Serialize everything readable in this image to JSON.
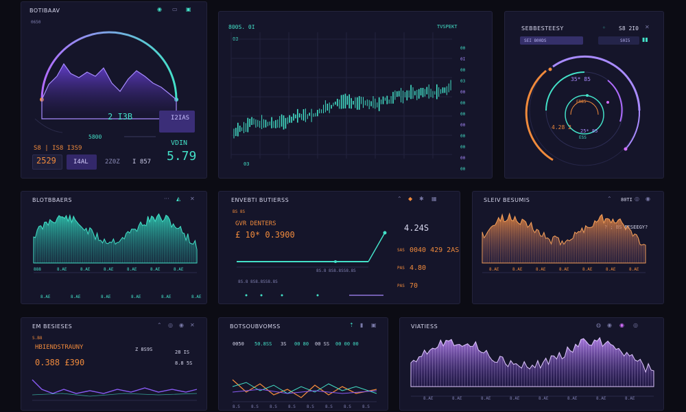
{
  "colors": {
    "bg": "#0c0c14",
    "panel": "#15152a",
    "teal": "#43e1c8",
    "violet": "#8a5cf6",
    "orange": "#f08a3c",
    "pink": "#d46fff"
  },
  "p1": {
    "title": "BOTIBAAV",
    "sub": "0650",
    "center_value": "2 I3B",
    "mid_value": "5800",
    "badge": "I2IAS",
    "left_value": "S8 | IS8 I3S9",
    "tile1": "2529",
    "tile2": "I4AL",
    "tile3": "2Z0Z",
    "tile4": "I 857",
    "big_label": "VDIN",
    "big_value": "5.79"
  },
  "p2": {
    "title": "800S. 0I",
    "top_right": "TVSPEKT",
    "sub": "03",
    "bottom": "03",
    "ticks_right": [
      "00",
      "0I",
      "00",
      "03",
      "00",
      "00",
      "00",
      "00",
      "00",
      "00",
      "00",
      "00"
    ]
  },
  "p3": {
    "title": "SEBBESTEESY",
    "tab_left": "SEI 800DS",
    "tab_right": "S0I5",
    "top_value": "S8 2I0",
    "ring_top": "35* 85",
    "ring_label": "ER85",
    "ring_left": "4.28 2",
    "ring_mid": "25* 85",
    "ring_bottom": "ESS"
  },
  "p4": {
    "title": "BLOTBBAERS",
    "ticks": [
      "888",
      "8.AE",
      "8.AE",
      "8.AE",
      "8.AE",
      "8.AE",
      "8.AE"
    ],
    "foot": [
      "8.AE",
      "8.AE",
      "8.AE",
      "8.AE",
      "8.AE",
      "8.AE"
    ]
  },
  "p5": {
    "title": "ENVEBTI BUTIERSS",
    "sub": "BS 8S",
    "label": "GVR DENTERS",
    "value": "£ 10* 0.3900",
    "side_big": "4.24S",
    "side_list": [
      [
        "SAS",
        "0040 429 2AS"
      ],
      [
        "PAS",
        "4.80"
      ],
      [
        "PAS",
        "70"
      ]
    ],
    "foot": [
      "8S.8 8S8.8SS8.8S",
      "8S.8 8S8.8SS8.8S"
    ]
  },
  "p6": {
    "title": "SLEIV BESUMIS",
    "top_right": "80TI",
    "label": "? ; BS BESEEGY?",
    "ticks": [
      "8.AE",
      "8.AE",
      "8.AE",
      "8.AE",
      "8.AE",
      "8.AE",
      "8.AE"
    ]
  },
  "p7": {
    "title": "EM BESIESES",
    "sub": "S.B8",
    "label": "HBIENDSTRAUNY",
    "mid": "Z 8S9S",
    "value": "0.388 £390",
    "r1": "28 IS",
    "r2": "8.8 5S"
  },
  "p8": {
    "title": "BOTSOUBVOMSS",
    "row": [
      "0050",
      "50.8SS",
      "3S",
      "00 80",
      "00 SS",
      "00 00 00"
    ],
    "ticks": [
      "8.S",
      "8.S",
      "8.S",
      "8.S",
      "8.S",
      "8.S",
      "8.S",
      "8.S"
    ]
  },
  "p9": {
    "title": "VIATIESS",
    "ticks": [
      "8.AE",
      "8.AE",
      "8.AE",
      "8.AE",
      "8.AE",
      "8.AE",
      "8.AE",
      "8.AE"
    ]
  }
}
